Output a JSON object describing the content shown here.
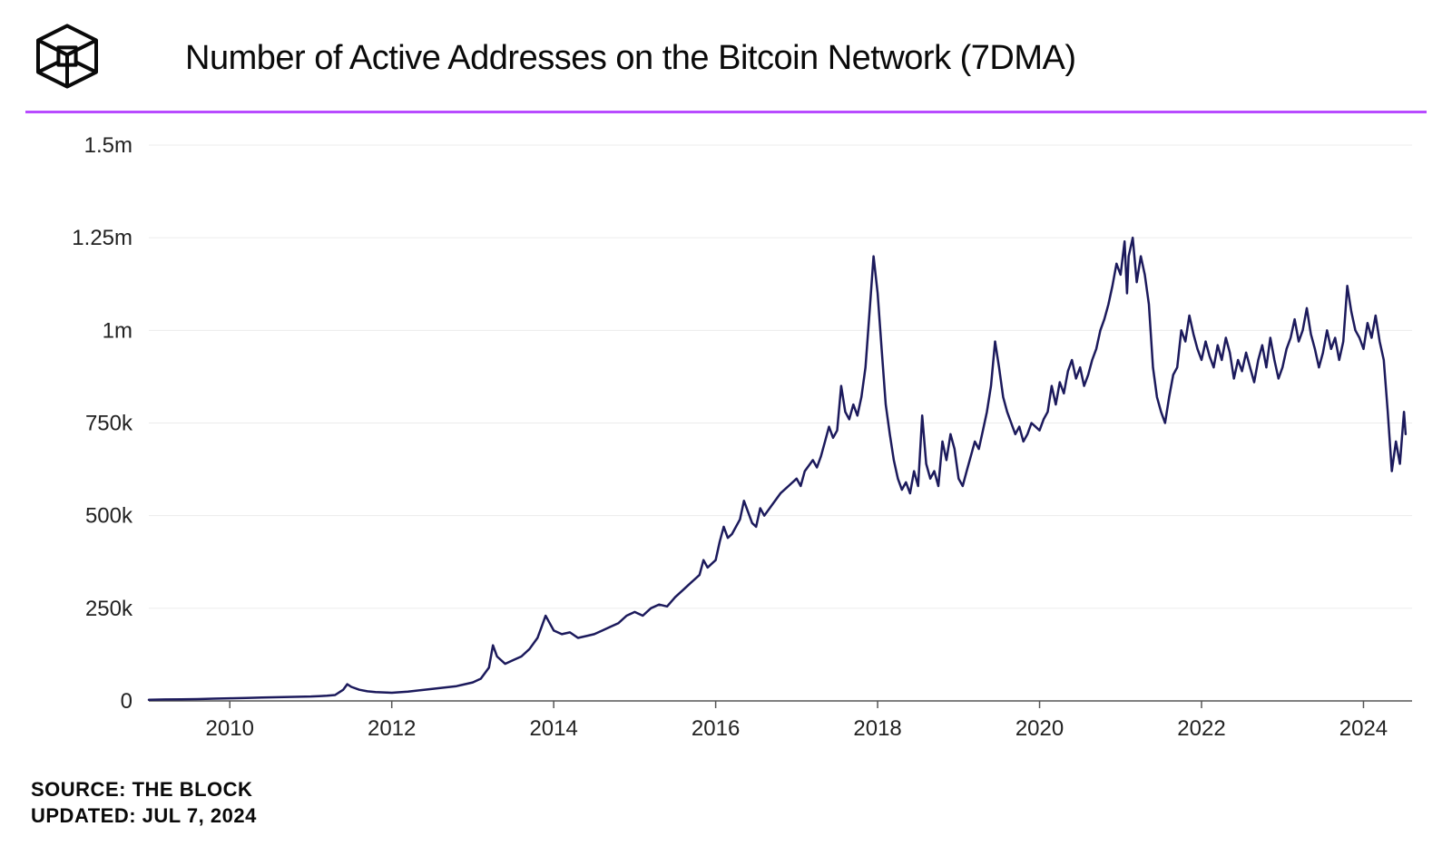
{
  "header": {
    "title": "Number of Active Addresses on the Bitcoin Network (7DMA)",
    "title_fontsize": 38,
    "title_color": "#0a0a0a"
  },
  "accent_line_color": "#b84bff",
  "footer": {
    "source_label": "SOURCE:",
    "source_value": "THE BLOCK",
    "updated_label": "UPDATED:",
    "updated_value": "JUL 7, 2024",
    "fontsize": 22,
    "color": "#0a0a0a"
  },
  "chart": {
    "type": "line",
    "background_color": "#ffffff",
    "line_color": "#1c1a5c",
    "line_width": 2.5,
    "grid_color": "#ececec",
    "axis_color": "#555555",
    "tick_font_size": 24,
    "tick_color": "#222222",
    "x": {
      "min": 2009,
      "max": 2024.6,
      "ticks": [
        2010,
        2012,
        2014,
        2016,
        2018,
        2020,
        2022,
        2024
      ]
    },
    "y": {
      "min": 0,
      "max": 1500000,
      "ticks": [
        {
          "v": 0,
          "label": "0"
        },
        {
          "v": 250000,
          "label": "250k"
        },
        {
          "v": 500000,
          "label": "500k"
        },
        {
          "v": 750000,
          "label": "750k"
        },
        {
          "v": 1000000,
          "label": "1m"
        },
        {
          "v": 1250000,
          "label": "1.25m"
        },
        {
          "v": 1500000,
          "label": "1.5m"
        }
      ]
    },
    "series": [
      [
        2009.0,
        3000
      ],
      [
        2009.2,
        4000
      ],
      [
        2009.4,
        4500
      ],
      [
        2009.6,
        5000
      ],
      [
        2009.8,
        6000
      ],
      [
        2010.0,
        7000
      ],
      [
        2010.2,
        8000
      ],
      [
        2010.4,
        9000
      ],
      [
        2010.6,
        10000
      ],
      [
        2010.8,
        11000
      ],
      [
        2011.0,
        12000
      ],
      [
        2011.1,
        13000
      ],
      [
        2011.2,
        14000
      ],
      [
        2011.3,
        16000
      ],
      [
        2011.4,
        30000
      ],
      [
        2011.45,
        45000
      ],
      [
        2011.5,
        38000
      ],
      [
        2011.6,
        30000
      ],
      [
        2011.7,
        26000
      ],
      [
        2011.8,
        24000
      ],
      [
        2012.0,
        22000
      ],
      [
        2012.2,
        25000
      ],
      [
        2012.4,
        30000
      ],
      [
        2012.6,
        35000
      ],
      [
        2012.8,
        40000
      ],
      [
        2013.0,
        50000
      ],
      [
        2013.1,
        60000
      ],
      [
        2013.2,
        90000
      ],
      [
        2013.25,
        150000
      ],
      [
        2013.3,
        120000
      ],
      [
        2013.4,
        100000
      ],
      [
        2013.5,
        110000
      ],
      [
        2013.6,
        120000
      ],
      [
        2013.7,
        140000
      ],
      [
        2013.8,
        170000
      ],
      [
        2013.85,
        200000
      ],
      [
        2013.9,
        230000
      ],
      [
        2013.95,
        210000
      ],
      [
        2014.0,
        190000
      ],
      [
        2014.1,
        180000
      ],
      [
        2014.2,
        185000
      ],
      [
        2014.3,
        170000
      ],
      [
        2014.4,
        175000
      ],
      [
        2014.5,
        180000
      ],
      [
        2014.6,
        190000
      ],
      [
        2014.7,
        200000
      ],
      [
        2014.8,
        210000
      ],
      [
        2014.9,
        230000
      ],
      [
        2015.0,
        240000
      ],
      [
        2015.1,
        230000
      ],
      [
        2015.2,
        250000
      ],
      [
        2015.3,
        260000
      ],
      [
        2015.4,
        255000
      ],
      [
        2015.5,
        280000
      ],
      [
        2015.6,
        300000
      ],
      [
        2015.7,
        320000
      ],
      [
        2015.8,
        340000
      ],
      [
        2015.85,
        380000
      ],
      [
        2015.9,
        360000
      ],
      [
        2016.0,
        380000
      ],
      [
        2016.05,
        430000
      ],
      [
        2016.1,
        470000
      ],
      [
        2016.15,
        440000
      ],
      [
        2016.2,
        450000
      ],
      [
        2016.3,
        490000
      ],
      [
        2016.35,
        540000
      ],
      [
        2016.4,
        510000
      ],
      [
        2016.45,
        480000
      ],
      [
        2016.5,
        470000
      ],
      [
        2016.55,
        520000
      ],
      [
        2016.6,
        500000
      ],
      [
        2016.7,
        530000
      ],
      [
        2016.8,
        560000
      ],
      [
        2016.9,
        580000
      ],
      [
        2017.0,
        600000
      ],
      [
        2017.05,
        580000
      ],
      [
        2017.1,
        620000
      ],
      [
        2017.2,
        650000
      ],
      [
        2017.25,
        630000
      ],
      [
        2017.3,
        660000
      ],
      [
        2017.35,
        700000
      ],
      [
        2017.4,
        740000
      ],
      [
        2017.45,
        710000
      ],
      [
        2017.5,
        730000
      ],
      [
        2017.55,
        850000
      ],
      [
        2017.6,
        780000
      ],
      [
        2017.65,
        760000
      ],
      [
        2017.7,
        800000
      ],
      [
        2017.75,
        770000
      ],
      [
        2017.8,
        820000
      ],
      [
        2017.85,
        900000
      ],
      [
        2017.9,
        1050000
      ],
      [
        2017.95,
        1200000
      ],
      [
        2018.0,
        1100000
      ],
      [
        2018.05,
        950000
      ],
      [
        2018.1,
        800000
      ],
      [
        2018.15,
        720000
      ],
      [
        2018.2,
        650000
      ],
      [
        2018.25,
        600000
      ],
      [
        2018.3,
        570000
      ],
      [
        2018.35,
        590000
      ],
      [
        2018.4,
        560000
      ],
      [
        2018.45,
        620000
      ],
      [
        2018.5,
        580000
      ],
      [
        2018.55,
        770000
      ],
      [
        2018.6,
        640000
      ],
      [
        2018.65,
        600000
      ],
      [
        2018.7,
        620000
      ],
      [
        2018.75,
        580000
      ],
      [
        2018.8,
        700000
      ],
      [
        2018.85,
        650000
      ],
      [
        2018.9,
        720000
      ],
      [
        2018.95,
        680000
      ],
      [
        2019.0,
        600000
      ],
      [
        2019.05,
        580000
      ],
      [
        2019.1,
        620000
      ],
      [
        2019.15,
        660000
      ],
      [
        2019.2,
        700000
      ],
      [
        2019.25,
        680000
      ],
      [
        2019.3,
        730000
      ],
      [
        2019.35,
        780000
      ],
      [
        2019.4,
        850000
      ],
      [
        2019.45,
        970000
      ],
      [
        2019.5,
        900000
      ],
      [
        2019.55,
        820000
      ],
      [
        2019.6,
        780000
      ],
      [
        2019.65,
        750000
      ],
      [
        2019.7,
        720000
      ],
      [
        2019.75,
        740000
      ],
      [
        2019.8,
        700000
      ],
      [
        2019.85,
        720000
      ],
      [
        2019.9,
        750000
      ],
      [
        2019.95,
        740000
      ],
      [
        2020.0,
        730000
      ],
      [
        2020.05,
        760000
      ],
      [
        2020.1,
        780000
      ],
      [
        2020.15,
        850000
      ],
      [
        2020.2,
        800000
      ],
      [
        2020.25,
        860000
      ],
      [
        2020.3,
        830000
      ],
      [
        2020.35,
        890000
      ],
      [
        2020.4,
        920000
      ],
      [
        2020.45,
        870000
      ],
      [
        2020.5,
        900000
      ],
      [
        2020.55,
        850000
      ],
      [
        2020.6,
        880000
      ],
      [
        2020.65,
        920000
      ],
      [
        2020.7,
        950000
      ],
      [
        2020.75,
        1000000
      ],
      [
        2020.8,
        1030000
      ],
      [
        2020.85,
        1070000
      ],
      [
        2020.9,
        1120000
      ],
      [
        2020.95,
        1180000
      ],
      [
        2021.0,
        1150000
      ],
      [
        2021.05,
        1240000
      ],
      [
        2021.08,
        1100000
      ],
      [
        2021.1,
        1200000
      ],
      [
        2021.15,
        1250000
      ],
      [
        2021.2,
        1130000
      ],
      [
        2021.25,
        1200000
      ],
      [
        2021.3,
        1150000
      ],
      [
        2021.35,
        1070000
      ],
      [
        2021.4,
        900000
      ],
      [
        2021.45,
        820000
      ],
      [
        2021.5,
        780000
      ],
      [
        2021.55,
        750000
      ],
      [
        2021.6,
        820000
      ],
      [
        2021.65,
        880000
      ],
      [
        2021.7,
        900000
      ],
      [
        2021.75,
        1000000
      ],
      [
        2021.8,
        970000
      ],
      [
        2021.85,
        1040000
      ],
      [
        2021.9,
        990000
      ],
      [
        2021.95,
        950000
      ],
      [
        2022.0,
        920000
      ],
      [
        2022.05,
        970000
      ],
      [
        2022.1,
        930000
      ],
      [
        2022.15,
        900000
      ],
      [
        2022.2,
        960000
      ],
      [
        2022.25,
        920000
      ],
      [
        2022.3,
        980000
      ],
      [
        2022.35,
        940000
      ],
      [
        2022.4,
        870000
      ],
      [
        2022.45,
        920000
      ],
      [
        2022.5,
        890000
      ],
      [
        2022.55,
        940000
      ],
      [
        2022.6,
        900000
      ],
      [
        2022.65,
        860000
      ],
      [
        2022.7,
        920000
      ],
      [
        2022.75,
        960000
      ],
      [
        2022.8,
        900000
      ],
      [
        2022.85,
        980000
      ],
      [
        2022.9,
        920000
      ],
      [
        2022.95,
        870000
      ],
      [
        2023.0,
        900000
      ],
      [
        2023.05,
        950000
      ],
      [
        2023.1,
        980000
      ],
      [
        2023.15,
        1030000
      ],
      [
        2023.2,
        970000
      ],
      [
        2023.25,
        1000000
      ],
      [
        2023.3,
        1060000
      ],
      [
        2023.35,
        990000
      ],
      [
        2023.4,
        950000
      ],
      [
        2023.45,
        900000
      ],
      [
        2023.5,
        940000
      ],
      [
        2023.55,
        1000000
      ],
      [
        2023.6,
        950000
      ],
      [
        2023.65,
        980000
      ],
      [
        2023.7,
        920000
      ],
      [
        2023.75,
        970000
      ],
      [
        2023.8,
        1120000
      ],
      [
        2023.85,
        1050000
      ],
      [
        2023.9,
        1000000
      ],
      [
        2023.95,
        980000
      ],
      [
        2024.0,
        950000
      ],
      [
        2024.05,
        1020000
      ],
      [
        2024.1,
        980000
      ],
      [
        2024.15,
        1040000
      ],
      [
        2024.2,
        970000
      ],
      [
        2024.25,
        920000
      ],
      [
        2024.3,
        780000
      ],
      [
        2024.35,
        620000
      ],
      [
        2024.4,
        700000
      ],
      [
        2024.45,
        640000
      ],
      [
        2024.5,
        780000
      ],
      [
        2024.52,
        720000
      ]
    ]
  }
}
